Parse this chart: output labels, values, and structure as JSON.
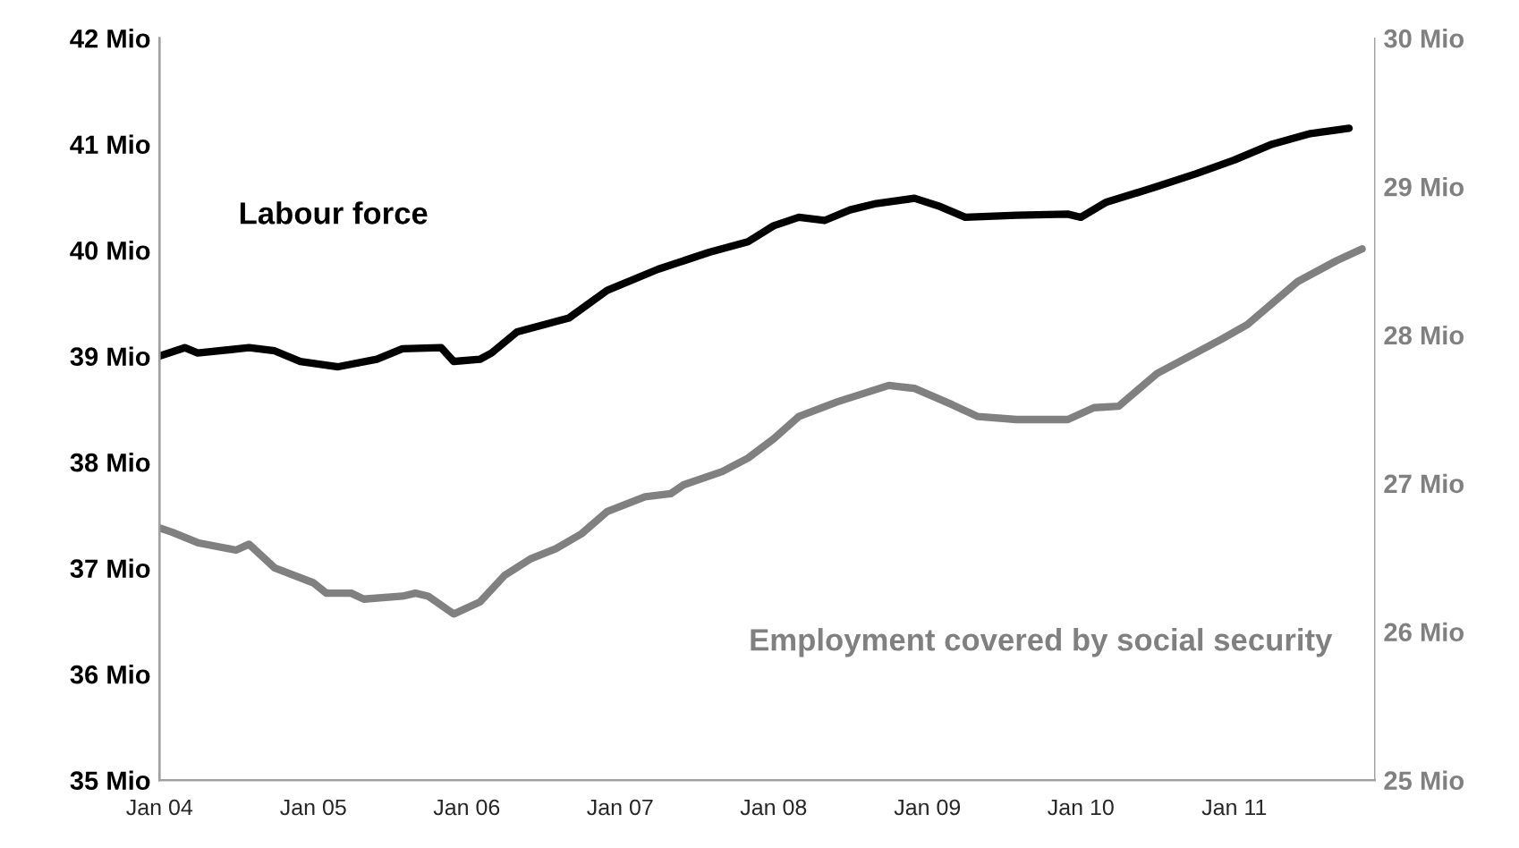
{
  "chart_data": {
    "type": "line",
    "series": [
      {
        "name": "Labour force",
        "color": "#000000",
        "axis": "y",
        "x": [
          "2004-01",
          "2004-03",
          "2004-04",
          "2004-08",
          "2004-10",
          "2004-12",
          "2005-03",
          "2005-06",
          "2005-08",
          "2005-11",
          "2005-12",
          "2006-02",
          "2006-03",
          "2006-05",
          "2006-09",
          "2006-12",
          "2007-04",
          "2007-08",
          "2007-11",
          "2008-01",
          "2008-03",
          "2008-05",
          "2008-07",
          "2008-09",
          "2008-12",
          "2009-02",
          "2009-04",
          "2009-08",
          "2009-12",
          "2010-01",
          "2010-03",
          "2010-07",
          "2010-10",
          "2011-01",
          "2011-04",
          "2011-07",
          "2011-10"
        ],
        "values": [
          39.0,
          39.08,
          39.03,
          39.08,
          39.05,
          38.95,
          38.9,
          38.97,
          39.07,
          39.08,
          38.95,
          38.97,
          39.03,
          39.23,
          39.36,
          39.62,
          39.82,
          39.98,
          40.08,
          40.23,
          40.31,
          40.28,
          40.38,
          40.44,
          40.49,
          40.41,
          40.31,
          40.33,
          40.34,
          40.31,
          40.45,
          40.6,
          40.72,
          40.85,
          41.0,
          41.1,
          41.15
        ]
      },
      {
        "name": "Employment covered by social security",
        "color": "#808080",
        "axis": "y2",
        "x": [
          "2004-01",
          "2004-02",
          "2004-04",
          "2004-07",
          "2004-08",
          "2004-10",
          "2005-01",
          "2005-02",
          "2005-04",
          "2005-05",
          "2005-08",
          "2005-09",
          "2005-10",
          "2005-12",
          "2006-02",
          "2006-04",
          "2006-06",
          "2006-08",
          "2006-10",
          "2006-12",
          "2007-03",
          "2007-05",
          "2007-06",
          "2007-09",
          "2007-11",
          "2008-01",
          "2008-03",
          "2008-06",
          "2008-10",
          "2008-12",
          "2009-03",
          "2009-05",
          "2009-08",
          "2009-12",
          "2010-02",
          "2010-04",
          "2010-07",
          "2010-12",
          "2011-02",
          "2011-06",
          "2011-09",
          "2011-11"
        ],
        "values": [
          26.7,
          26.67,
          26.6,
          26.55,
          26.59,
          26.43,
          26.33,
          26.26,
          26.26,
          26.22,
          26.24,
          26.26,
          26.24,
          26.12,
          26.2,
          26.38,
          26.49,
          26.56,
          26.66,
          26.81,
          26.91,
          26.93,
          26.99,
          27.08,
          27.17,
          27.3,
          27.45,
          27.55,
          27.66,
          27.64,
          27.53,
          27.45,
          27.43,
          27.43,
          27.51,
          27.52,
          27.74,
          27.97,
          28.07,
          28.36,
          28.5,
          28.58
        ]
      }
    ],
    "xlim": [
      "2004-01",
      "2011-12"
    ],
    "xticks": [
      {
        "value": "2004-01",
        "label": "Jan 04"
      },
      {
        "value": "2005-01",
        "label": "Jan 05"
      },
      {
        "value": "2006-01",
        "label": "Jan 06"
      },
      {
        "value": "2007-01",
        "label": "Jan 07"
      },
      {
        "value": "2008-01",
        "label": "Jan 08"
      },
      {
        "value": "2009-01",
        "label": "Jan 09"
      },
      {
        "value": "2010-01",
        "label": "Jan 10"
      },
      {
        "value": "2011-01",
        "label": "Jan 11"
      }
    ],
    "ylim": [
      35,
      42
    ],
    "yticks": [
      {
        "value": 35,
        "label": "35 Mio"
      },
      {
        "value": 36,
        "label": "36 Mio"
      },
      {
        "value": 37,
        "label": "37 Mio"
      },
      {
        "value": 38,
        "label": "38 Mio"
      },
      {
        "value": 39,
        "label": "39 Mio"
      },
      {
        "value": 40,
        "label": "40 Mio"
      },
      {
        "value": 41,
        "label": "41 Mio"
      },
      {
        "value": 42,
        "label": "42 Mio"
      }
    ],
    "y2lim": [
      25,
      30
    ],
    "y2ticks": [
      {
        "value": 25,
        "label": "25 Mio"
      },
      {
        "value": 26,
        "label": "26 Mio"
      },
      {
        "value": 27,
        "label": "27 Mio"
      },
      {
        "value": 28,
        "label": "28 Mio"
      },
      {
        "value": 29,
        "label": "29 Mio"
      },
      {
        "value": 30,
        "label": "30 Mio"
      }
    ],
    "grid": false,
    "legend": false,
    "marker": "none",
    "line_style": "solid"
  }
}
